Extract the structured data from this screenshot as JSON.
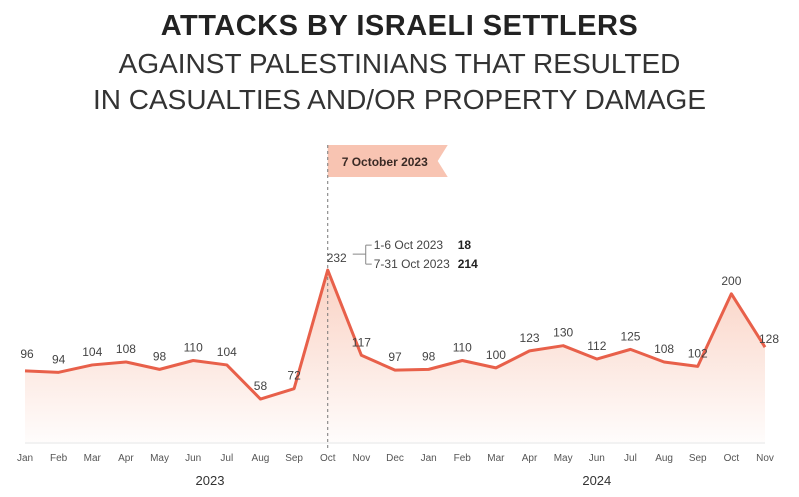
{
  "chart_data": {
    "type": "area",
    "title": "ATTACKS BY ISRAELI SETTLERS",
    "subtitle_lines": [
      "AGAINST PALESTINIANS THAT RESULTED",
      "IN CASUALTIES AND/OR PROPERTY DAMAGE"
    ],
    "categories": [
      "Jan",
      "Feb",
      "Mar",
      "Apr",
      "May",
      "Jun",
      "Jul",
      "Aug",
      "Sep",
      "Oct",
      "Nov",
      "Dec",
      "Jan",
      "Feb",
      "Mar",
      "Apr",
      "May",
      "Jun",
      "Jul",
      "Aug",
      "Sep",
      "Oct",
      "Nov"
    ],
    "values": [
      96,
      94,
      104,
      108,
      98,
      110,
      104,
      58,
      72,
      232,
      117,
      97,
      98,
      110,
      100,
      123,
      130,
      112,
      125,
      108,
      102,
      200,
      128
    ],
    "years": [
      {
        "label": "2023",
        "start": 0,
        "end": 11
      },
      {
        "label": "2024",
        "start": 12,
        "end": 22
      }
    ],
    "ylim": [
      0,
      240
    ],
    "grid": false,
    "event_marker": {
      "index": 9,
      "label": "7 October 2023"
    },
    "breakdown": [
      {
        "label": "1-6 Oct 2023",
        "value": "18"
      },
      {
        "label": "7-31 Oct 2023",
        "value": "214"
      }
    ],
    "colors": {
      "line": "#e8604a",
      "fill": "#f9c9b8",
      "flag": "#f8c4b2"
    }
  }
}
